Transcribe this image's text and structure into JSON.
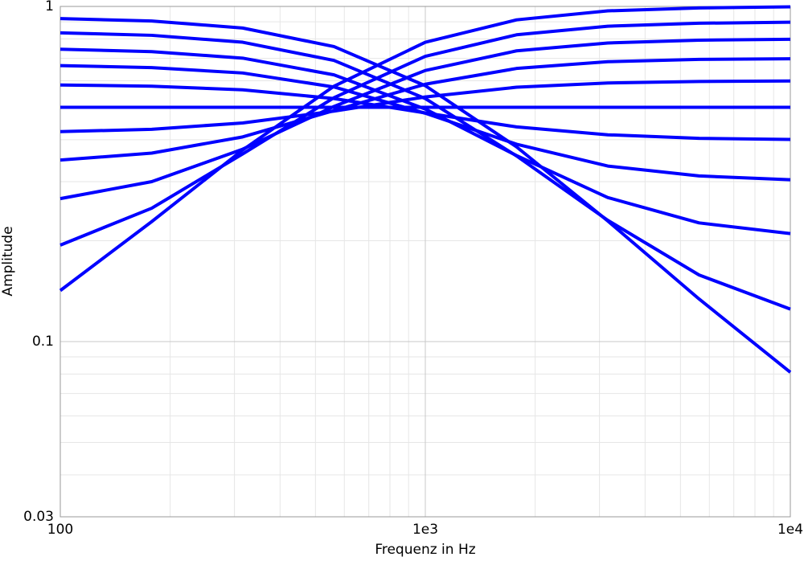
{
  "chart_data": {
    "type": "line",
    "xlabel": "Frequenz in Hz",
    "ylabel": "Amplitude",
    "ylabel_color": "#0000ff",
    "x": [
      100,
      178,
      316,
      562,
      1000,
      1778,
      3162,
      5623,
      10000
    ],
    "series": [
      {
        "color": "#0000ff",
        "values": [
          0.92,
          0.905,
          0.862,
          0.759,
          0.58,
          0.381,
          0.229,
          0.134,
          0.081
        ]
      },
      {
        "color": "#0000ff",
        "values": [
          0.834,
          0.82,
          0.782,
          0.69,
          0.531,
          0.358,
          0.23,
          0.158,
          0.125
        ]
      },
      {
        "color": "#0000ff",
        "values": [
          0.745,
          0.733,
          0.701,
          0.625,
          0.494,
          0.359,
          0.269,
          0.226,
          0.21
        ]
      },
      {
        "color": "#0000ff",
        "values": [
          0.666,
          0.657,
          0.633,
          0.575,
          0.48,
          0.388,
          0.334,
          0.312,
          0.304
        ]
      },
      {
        "color": "#0000ff",
        "values": [
          0.583,
          0.578,
          0.564,
          0.531,
          0.481,
          0.437,
          0.414,
          0.404,
          0.401
        ]
      },
      {
        "color": "#0000ff",
        "values": [
          0.5,
          0.5,
          0.5,
          0.5,
          0.5,
          0.5,
          0.5,
          0.5,
          0.5
        ]
      },
      {
        "color": "#0000ff",
        "values": [
          0.423,
          0.43,
          0.449,
          0.487,
          0.537,
          0.574,
          0.591,
          0.597,
          0.599
        ]
      },
      {
        "color": "#0000ff",
        "values": [
          0.348,
          0.365,
          0.408,
          0.489,
          0.586,
          0.653,
          0.684,
          0.695,
          0.698
        ]
      },
      {
        "color": "#0000ff",
        "values": [
          0.267,
          0.3,
          0.375,
          0.503,
          0.644,
          0.737,
          0.778,
          0.793,
          0.798
        ]
      },
      {
        "color": "#0000ff",
        "values": [
          0.194,
          0.25,
          0.363,
          0.534,
          0.71,
          0.823,
          0.873,
          0.891,
          0.897
        ]
      },
      {
        "color": "#0000ff",
        "values": [
          0.142,
          0.228,
          0.373,
          0.578,
          0.782,
          0.912,
          0.97,
          0.99,
          0.997
        ]
      }
    ],
    "xlim": [
      100,
      10000
    ],
    "xticks": [
      100,
      {
        "value": 1000,
        "label": "1e3"
      },
      {
        "value": 10000,
        "label": "1e4"
      }
    ],
    "ylim": [
      0.03,
      1
    ],
    "yticks": [
      0.03,
      0.1,
      1
    ],
    "xscale": "log",
    "yscale": "log",
    "grid": true,
    "minor_grid": true
  }
}
